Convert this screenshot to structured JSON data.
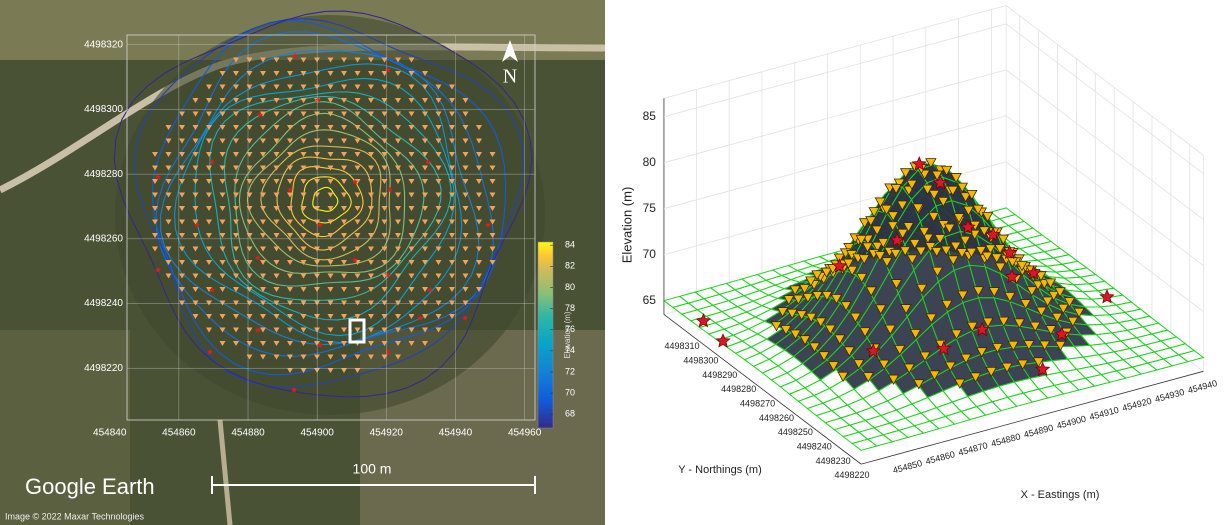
{
  "left_panel": {
    "xlim": [
      454845,
      454963
    ],
    "xticks": [
      454840,
      454860,
      454880,
      454900,
      454920,
      454940,
      454960
    ],
    "ylim": [
      4498204,
      4498323
    ],
    "yticks": [
      4498220,
      4498240,
      4498260,
      4498280,
      4498300,
      4498320
    ],
    "colorbar": {
      "label": "Elevation (m)",
      "lim": [
        66.7,
        84.3
      ],
      "ticks": [
        68,
        70,
        72,
        74,
        76,
        78,
        80,
        82,
        84
      ]
    },
    "north": "N",
    "brand": "Google Earth",
    "scale_label": "100 m",
    "credit": "Image © 2022 Maxar Technologies"
  },
  "right_panel": {
    "zlabel": "Elevation (m)",
    "zlim": [
      63.5,
      87
    ],
    "zticks": [
      65,
      70,
      75,
      80,
      85
    ],
    "xlabel": "X - Eastings (m)",
    "xticks": [
      454850,
      454860,
      454870,
      454880,
      454890,
      454900,
      454910,
      454920,
      454930,
      454940
    ],
    "ylabel": "Y - Northings (m)",
    "yticks": [
      4498220,
      4498230,
      4498240,
      4498250,
      4498260,
      4498270,
      4498280,
      4498290,
      4498300,
      4498310
    ]
  }
}
